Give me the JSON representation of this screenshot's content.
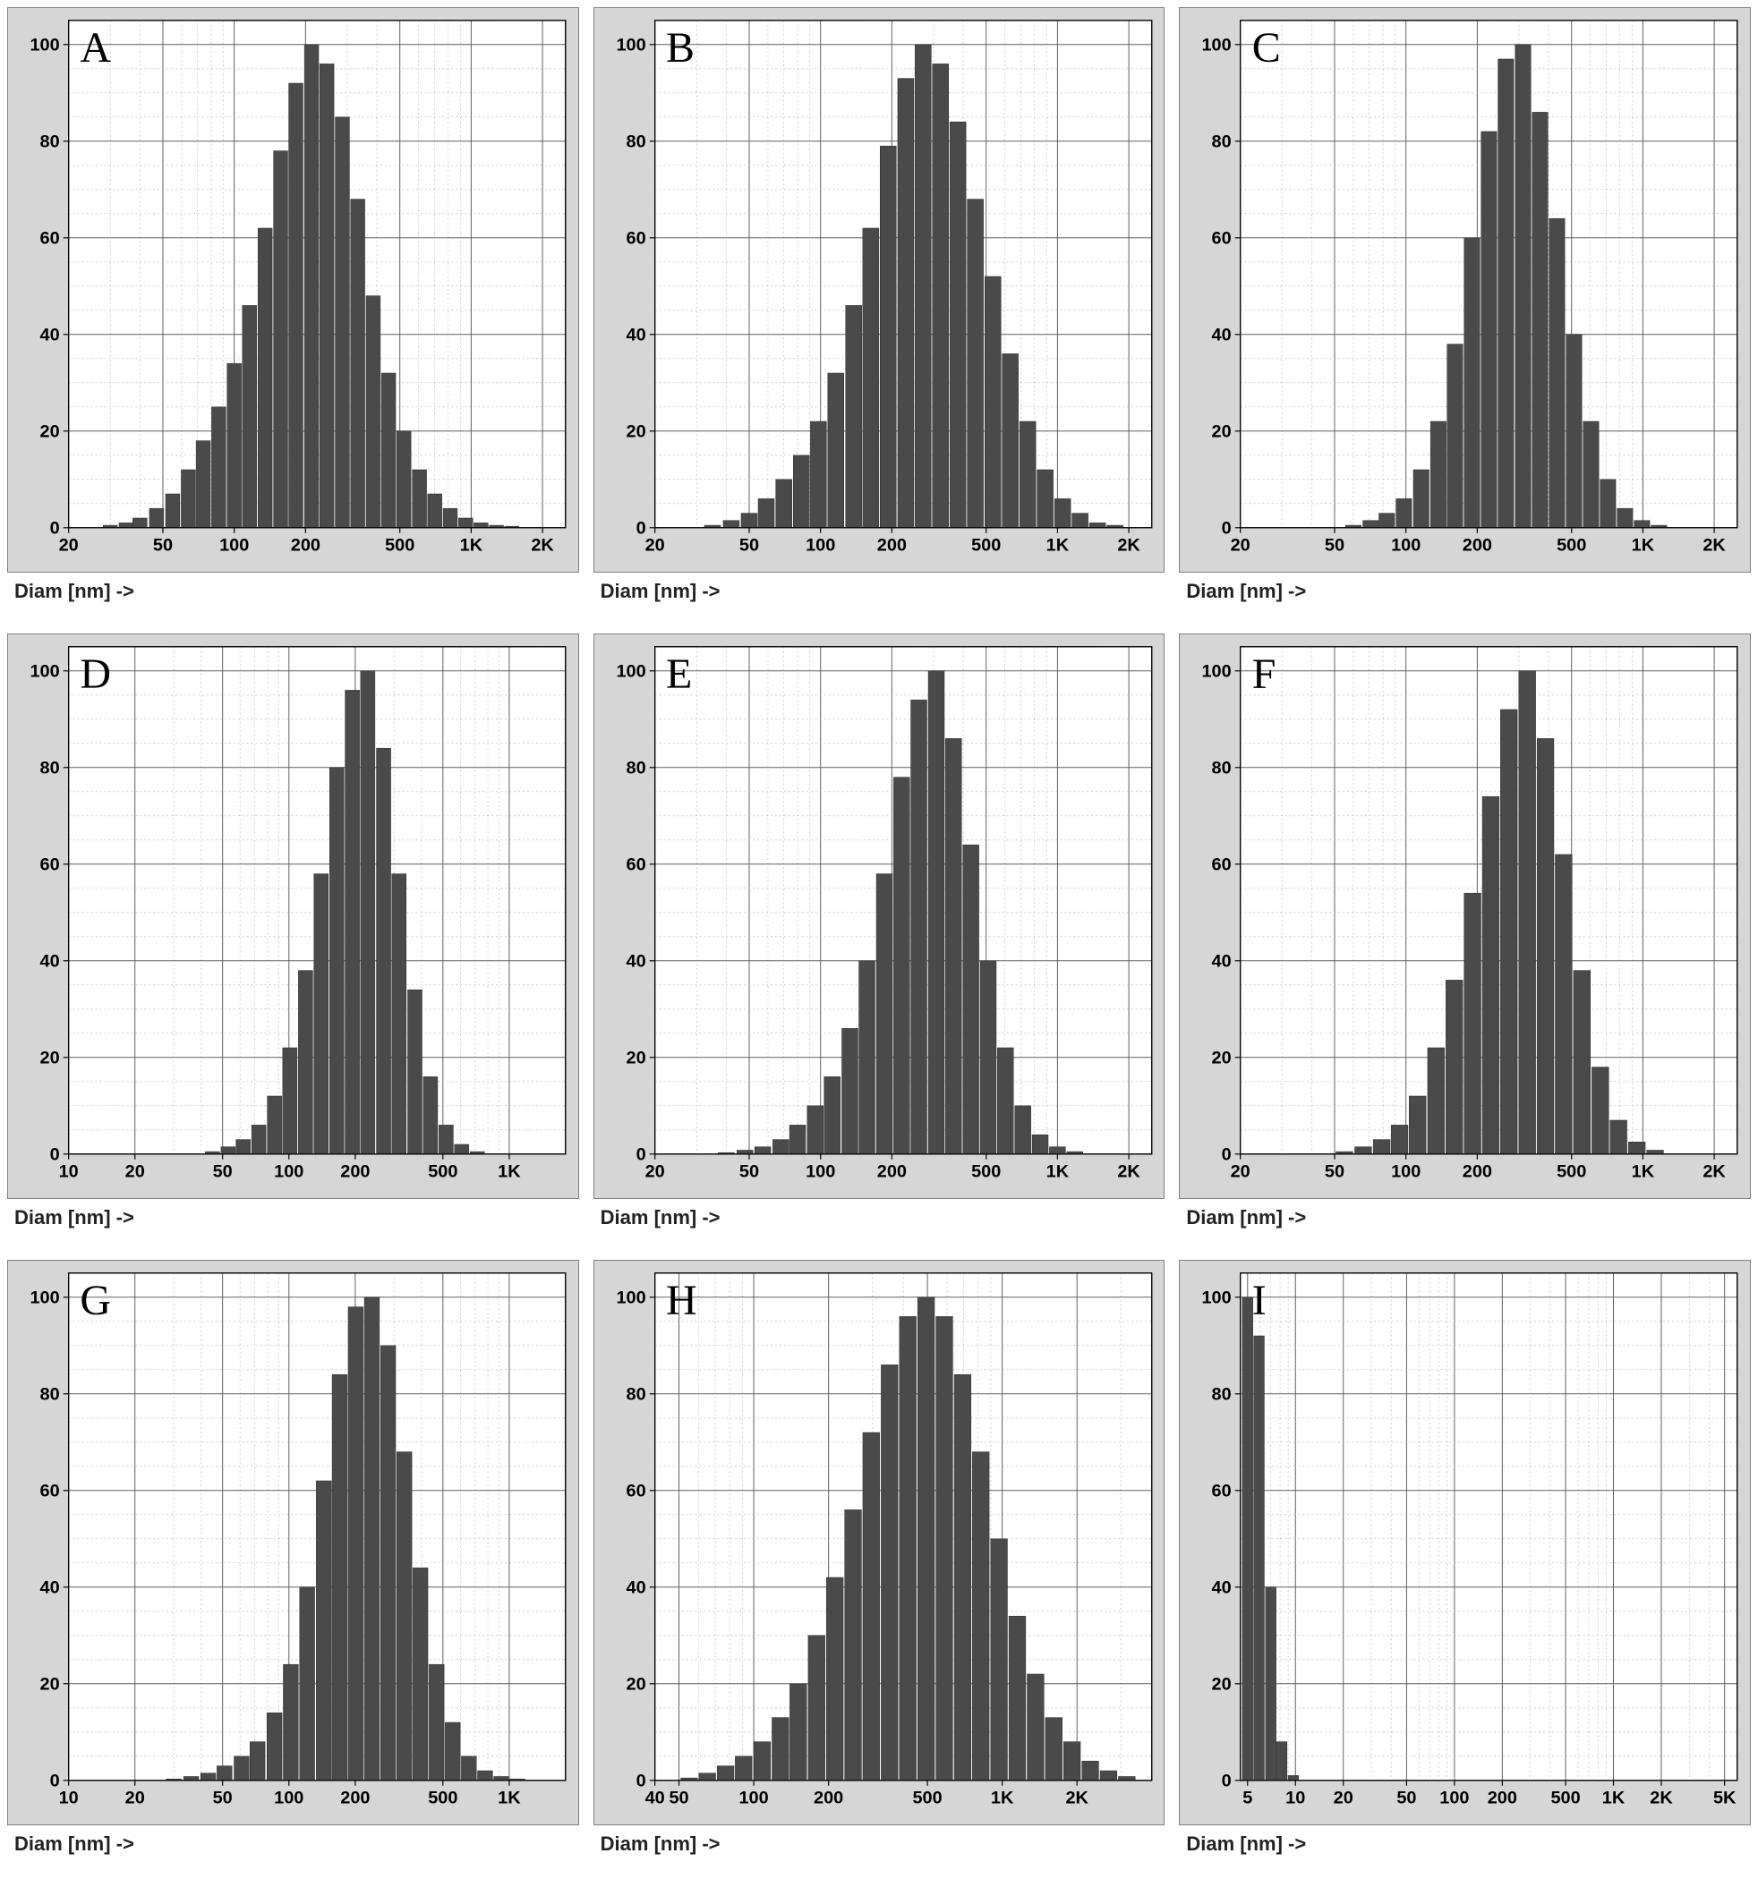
{
  "figure": {
    "background_color": "#ffffff",
    "panel_bg_color": "#d6d6d6",
    "plot_bg_color": "#ffffff",
    "bar_color": "#4a4a4a",
    "grid_major_color": "#606060",
    "grid_minor_color": "#b0b0b0",
    "axis_label": "Diam [nm] ->",
    "axis_label_fontsize": 22,
    "letter_fontsize": 48,
    "tick_fontsize": 20,
    "y_axis": {
      "min": 0,
      "max": 105,
      "ticks": [
        0,
        20,
        40,
        60,
        80,
        100
      ]
    },
    "panels": [
      {
        "letter": "A",
        "x_ticks": [
          20,
          50,
          100,
          200,
          500,
          "1K",
          "2K"
        ],
        "x_tick_vals": [
          20,
          50,
          100,
          200,
          500,
          1000,
          2000
        ],
        "x_min": 20,
        "x_max": 2500,
        "bars": [
          {
            "x": 30,
            "v": 0.5
          },
          {
            "x": 35,
            "v": 1
          },
          {
            "x": 40,
            "v": 2
          },
          {
            "x": 47,
            "v": 4
          },
          {
            "x": 55,
            "v": 7
          },
          {
            "x": 64,
            "v": 12
          },
          {
            "x": 74,
            "v": 18
          },
          {
            "x": 86,
            "v": 25
          },
          {
            "x": 100,
            "v": 34
          },
          {
            "x": 116,
            "v": 46
          },
          {
            "x": 135,
            "v": 62
          },
          {
            "x": 157,
            "v": 78
          },
          {
            "x": 182,
            "v": 92
          },
          {
            "x": 212,
            "v": 100
          },
          {
            "x": 246,
            "v": 96
          },
          {
            "x": 286,
            "v": 85
          },
          {
            "x": 332,
            "v": 68
          },
          {
            "x": 386,
            "v": 48
          },
          {
            "x": 448,
            "v": 32
          },
          {
            "x": 520,
            "v": 20
          },
          {
            "x": 605,
            "v": 12
          },
          {
            "x": 702,
            "v": 7
          },
          {
            "x": 816,
            "v": 4
          },
          {
            "x": 948,
            "v": 2
          },
          {
            "x": 1100,
            "v": 1
          },
          {
            "x": 1278,
            "v": 0.5
          },
          {
            "x": 1485,
            "v": 0.3
          }
        ]
      },
      {
        "letter": "B",
        "x_ticks": [
          20,
          50,
          100,
          200,
          500,
          "1K",
          "2K"
        ],
        "x_tick_vals": [
          20,
          50,
          100,
          200,
          500,
          1000,
          2000
        ],
        "x_min": 20,
        "x_max": 2500,
        "bars": [
          {
            "x": 35,
            "v": 0.5
          },
          {
            "x": 42,
            "v": 1.5
          },
          {
            "x": 50,
            "v": 3
          },
          {
            "x": 59,
            "v": 6
          },
          {
            "x": 70,
            "v": 10
          },
          {
            "x": 83,
            "v": 15
          },
          {
            "x": 98,
            "v": 22
          },
          {
            "x": 116,
            "v": 32
          },
          {
            "x": 138,
            "v": 46
          },
          {
            "x": 163,
            "v": 62
          },
          {
            "x": 193,
            "v": 79
          },
          {
            "x": 229,
            "v": 93
          },
          {
            "x": 271,
            "v": 100
          },
          {
            "x": 321,
            "v": 96
          },
          {
            "x": 380,
            "v": 84
          },
          {
            "x": 450,
            "v": 68
          },
          {
            "x": 534,
            "v": 52
          },
          {
            "x": 632,
            "v": 36
          },
          {
            "x": 749,
            "v": 22
          },
          {
            "x": 887,
            "v": 12
          },
          {
            "x": 1051,
            "v": 6
          },
          {
            "x": 1245,
            "v": 3
          },
          {
            "x": 1475,
            "v": 1
          },
          {
            "x": 1747,
            "v": 0.5
          }
        ]
      },
      {
        "letter": "C",
        "x_ticks": [
          20,
          50,
          100,
          200,
          500,
          "1K",
          "2K"
        ],
        "x_tick_vals": [
          20,
          50,
          100,
          200,
          500,
          1000,
          2000
        ],
        "x_min": 20,
        "x_max": 2500,
        "bars": [
          {
            "x": 60,
            "v": 0.5
          },
          {
            "x": 71,
            "v": 1.5
          },
          {
            "x": 83,
            "v": 3
          },
          {
            "x": 98,
            "v": 6
          },
          {
            "x": 116,
            "v": 12
          },
          {
            "x": 137,
            "v": 22
          },
          {
            "x": 161,
            "v": 38
          },
          {
            "x": 190,
            "v": 60
          },
          {
            "x": 224,
            "v": 82
          },
          {
            "x": 264,
            "v": 97
          },
          {
            "x": 312,
            "v": 100
          },
          {
            "x": 368,
            "v": 86
          },
          {
            "x": 434,
            "v": 64
          },
          {
            "x": 512,
            "v": 40
          },
          {
            "x": 604,
            "v": 22
          },
          {
            "x": 712,
            "v": 10
          },
          {
            "x": 840,
            "v": 4
          },
          {
            "x": 991,
            "v": 1.5
          },
          {
            "x": 1169,
            "v": 0.5
          }
        ]
      },
      {
        "letter": "D",
        "x_ticks": [
          10,
          20,
          50,
          100,
          200,
          500,
          "1K"
        ],
        "x_tick_vals": [
          10,
          20,
          50,
          100,
          200,
          500,
          1000
        ],
        "x_min": 10,
        "x_max": 1800,
        "bars": [
          {
            "x": 45,
            "v": 0.5
          },
          {
            "x": 53,
            "v": 1.5
          },
          {
            "x": 62,
            "v": 3
          },
          {
            "x": 73,
            "v": 6
          },
          {
            "x": 86,
            "v": 12
          },
          {
            "x": 101,
            "v": 22
          },
          {
            "x": 119,
            "v": 38
          },
          {
            "x": 140,
            "v": 58
          },
          {
            "x": 165,
            "v": 80
          },
          {
            "x": 194,
            "v": 96
          },
          {
            "x": 228,
            "v": 100
          },
          {
            "x": 269,
            "v": 84
          },
          {
            "x": 316,
            "v": 58
          },
          {
            "x": 373,
            "v": 34
          },
          {
            "x": 439,
            "v": 16
          },
          {
            "x": 517,
            "v": 6
          },
          {
            "x": 608,
            "v": 2
          },
          {
            "x": 716,
            "v": 0.5
          }
        ]
      },
      {
        "letter": "E",
        "x_ticks": [
          20,
          50,
          100,
          200,
          500,
          "1K",
          "2K"
        ],
        "x_tick_vals": [
          20,
          50,
          100,
          200,
          500,
          1000,
          2000
        ],
        "x_min": 20,
        "x_max": 2500,
        "bars": [
          {
            "x": 40,
            "v": 0.3
          },
          {
            "x": 48,
            "v": 0.8
          },
          {
            "x": 57,
            "v": 1.5
          },
          {
            "x": 68,
            "v": 3
          },
          {
            "x": 80,
            "v": 6
          },
          {
            "x": 95,
            "v": 10
          },
          {
            "x": 112,
            "v": 16
          },
          {
            "x": 133,
            "v": 26
          },
          {
            "x": 157,
            "v": 40
          },
          {
            "x": 186,
            "v": 58
          },
          {
            "x": 220,
            "v": 78
          },
          {
            "x": 260,
            "v": 94
          },
          {
            "x": 308,
            "v": 100
          },
          {
            "x": 364,
            "v": 86
          },
          {
            "x": 431,
            "v": 64
          },
          {
            "x": 510,
            "v": 40
          },
          {
            "x": 603,
            "v": 22
          },
          {
            "x": 714,
            "v": 10
          },
          {
            "x": 845,
            "v": 4
          },
          {
            "x": 1000,
            "v": 1.5
          },
          {
            "x": 1183,
            "v": 0.5
          }
        ]
      },
      {
        "letter": "F",
        "x_ticks": [
          20,
          50,
          100,
          200,
          500,
          "1K",
          "2K"
        ],
        "x_tick_vals": [
          20,
          50,
          100,
          200,
          500,
          1000,
          2000
        ],
        "x_min": 20,
        "x_max": 2500,
        "bars": [
          {
            "x": 55,
            "v": 0.5
          },
          {
            "x": 66,
            "v": 1.5
          },
          {
            "x": 79,
            "v": 3
          },
          {
            "x": 94,
            "v": 6
          },
          {
            "x": 112,
            "v": 12
          },
          {
            "x": 134,
            "v": 22
          },
          {
            "x": 160,
            "v": 36
          },
          {
            "x": 191,
            "v": 54
          },
          {
            "x": 228,
            "v": 74
          },
          {
            "x": 272,
            "v": 92
          },
          {
            "x": 325,
            "v": 100
          },
          {
            "x": 388,
            "v": 86
          },
          {
            "x": 463,
            "v": 62
          },
          {
            "x": 553,
            "v": 38
          },
          {
            "x": 661,
            "v": 18
          },
          {
            "x": 789,
            "v": 7
          },
          {
            "x": 943,
            "v": 2.5
          },
          {
            "x": 1126,
            "v": 0.8
          }
        ]
      },
      {
        "letter": "G",
        "x_ticks": [
          10,
          20,
          50,
          100,
          200,
          500,
          "1K"
        ],
        "x_tick_vals": [
          10,
          20,
          50,
          100,
          200,
          500,
          1000
        ],
        "x_min": 10,
        "x_max": 1800,
        "bars": [
          {
            "x": 30,
            "v": 0.3
          },
          {
            "x": 36,
            "v": 0.8
          },
          {
            "x": 43,
            "v": 1.5
          },
          {
            "x": 51,
            "v": 3
          },
          {
            "x": 61,
            "v": 5
          },
          {
            "x": 72,
            "v": 8
          },
          {
            "x": 86,
            "v": 14
          },
          {
            "x": 102,
            "v": 24
          },
          {
            "x": 121,
            "v": 40
          },
          {
            "x": 144,
            "v": 62
          },
          {
            "x": 170,
            "v": 84
          },
          {
            "x": 201,
            "v": 98
          },
          {
            "x": 238,
            "v": 100
          },
          {
            "x": 282,
            "v": 90
          },
          {
            "x": 334,
            "v": 68
          },
          {
            "x": 395,
            "v": 44
          },
          {
            "x": 468,
            "v": 24
          },
          {
            "x": 554,
            "v": 12
          },
          {
            "x": 656,
            "v": 5
          },
          {
            "x": 777,
            "v": 2
          },
          {
            "x": 920,
            "v": 0.8
          },
          {
            "x": 1089,
            "v": 0.3
          }
        ]
      },
      {
        "letter": "H",
        "x_ticks": [
          40,
          50,
          100,
          200,
          500,
          "1K",
          "2K"
        ],
        "x_tick_vals": [
          40,
          50,
          100,
          200,
          500,
          1000,
          2000
        ],
        "x_min": 40,
        "x_max": 4000,
        "bars": [
          {
            "x": 55,
            "v": 0.5
          },
          {
            "x": 65,
            "v": 1.5
          },
          {
            "x": 77,
            "v": 3
          },
          {
            "x": 91,
            "v": 5
          },
          {
            "x": 108,
            "v": 8
          },
          {
            "x": 128,
            "v": 13
          },
          {
            "x": 151,
            "v": 20
          },
          {
            "x": 179,
            "v": 30
          },
          {
            "x": 212,
            "v": 42
          },
          {
            "x": 251,
            "v": 56
          },
          {
            "x": 297,
            "v": 72
          },
          {
            "x": 352,
            "v": 86
          },
          {
            "x": 417,
            "v": 96
          },
          {
            "x": 494,
            "v": 100
          },
          {
            "x": 585,
            "v": 96
          },
          {
            "x": 693,
            "v": 84
          },
          {
            "x": 820,
            "v": 68
          },
          {
            "x": 971,
            "v": 50
          },
          {
            "x": 1150,
            "v": 34
          },
          {
            "x": 1362,
            "v": 22
          },
          {
            "x": 1613,
            "v": 13
          },
          {
            "x": 1910,
            "v": 8
          },
          {
            "x": 2262,
            "v": 4
          },
          {
            "x": 2679,
            "v": 2
          },
          {
            "x": 3173,
            "v": 0.8
          }
        ]
      },
      {
        "letter": "I",
        "x_ticks": [
          5,
          10,
          20,
          50,
          100,
          200,
          500,
          "1K",
          "2K",
          "5K"
        ],
        "x_tick_vals": [
          5,
          10,
          20,
          50,
          100,
          200,
          500,
          1000,
          2000,
          5000
        ],
        "x_min": 4.5,
        "x_max": 6000,
        "bars": [
          {
            "x": 5.0,
            "v": 100
          },
          {
            "x": 5.9,
            "v": 92
          },
          {
            "x": 7.0,
            "v": 40
          },
          {
            "x": 8.2,
            "v": 8
          },
          {
            "x": 9.7,
            "v": 1
          }
        ]
      }
    ]
  }
}
